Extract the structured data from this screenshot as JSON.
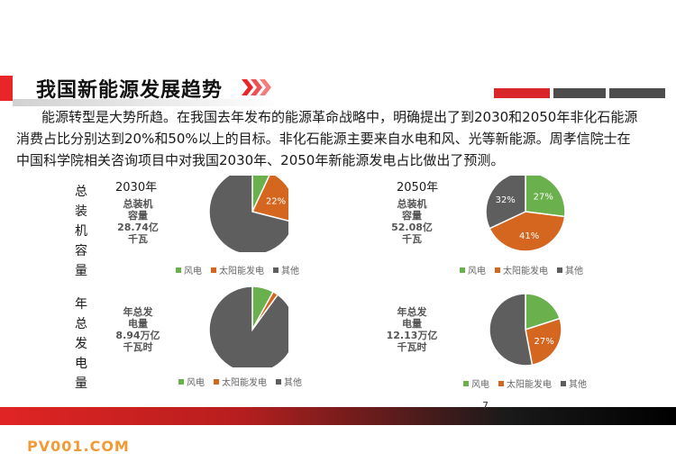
{
  "title": "我国新能源发展趋势",
  "paragraph": {
    "line1": "能源转型是大势所趋。在我国去年发布的能源革命战略中，明确提出了到2030和2050年非化石能源",
    "line2": "消费占比分别达到20%和50%以上的目标。非化石能源主要来自水电和风、光等新能源。周孝信院士在",
    "line3": "中国科学院相关咨询项目中对我国2030年、2050年新能源发电占比做出了预测。"
  },
  "row_labels": {
    "capacity": "总装机容量",
    "generation": "年总发电量"
  },
  "footer": {
    "page_number": "7",
    "watermark": "PV001.COM"
  },
  "colors": {
    "wind": "#6ab04c",
    "solar": "#d4661f",
    "other": "#5e5e5e",
    "accent": "#e8262a"
  },
  "legend": {
    "wind": "风电",
    "solar": "太阳能发电",
    "other": "其他"
  },
  "chart_data": [
    {
      "type": "pie",
      "year": "2030年",
      "center_label": [
        "总装机",
        "容量",
        "28.74亿",
        "千瓦"
      ],
      "categories": [
        "风电",
        "太阳能发电",
        "其他"
      ],
      "values": [
        7,
        22,
        71
      ],
      "labels": [
        "",
        "22%",
        ""
      ]
    },
    {
      "type": "pie",
      "year": "2050年",
      "center_label": [
        "总装机",
        "容量",
        "52.08亿",
        "千瓦"
      ],
      "categories": [
        "风电",
        "太阳能发电",
        "其他"
      ],
      "values": [
        27,
        41,
        32
      ],
      "labels": [
        "27%",
        "41%",
        "32%"
      ]
    },
    {
      "type": "pie",
      "year": "",
      "center_label": [
        "年总发",
        "电量",
        "8.94万亿",
        "千瓦时"
      ],
      "categories": [
        "风电",
        "太阳能发电",
        "其他"
      ],
      "values": [
        8,
        2,
        90
      ],
      "labels": [
        "",
        "",
        ""
      ]
    },
    {
      "type": "pie",
      "year": "",
      "center_label": [
        "年总发",
        "电量",
        "12.13万亿",
        "千瓦时"
      ],
      "categories": [
        "风电",
        "太阳能发电",
        "其他"
      ],
      "values": [
        20,
        27,
        53
      ],
      "labels": [
        "",
        "27%",
        ""
      ]
    }
  ]
}
